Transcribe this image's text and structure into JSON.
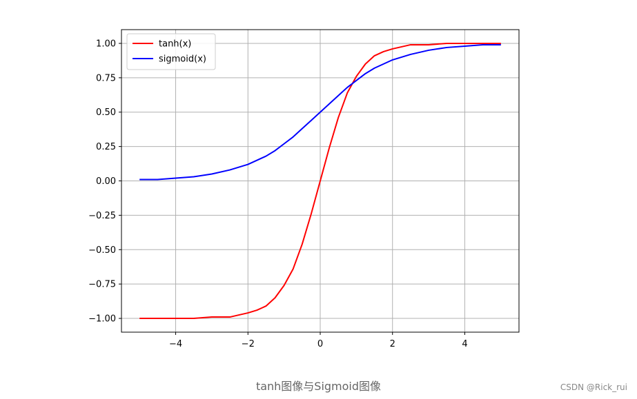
{
  "chart_data": {
    "type": "line",
    "title": "",
    "xlabel": "",
    "ylabel": "",
    "xlim": [
      -5.5,
      5.5
    ],
    "ylim": [
      -1.1,
      1.1
    ],
    "xticks": [
      -4,
      -2,
      0,
      2,
      4
    ],
    "xtick_labels": [
      "−4",
      "−2",
      "0",
      "2",
      "4"
    ],
    "yticks": [
      -1.0,
      -0.75,
      -0.5,
      -0.25,
      0.0,
      0.25,
      0.5,
      0.75,
      1.0
    ],
    "ytick_labels": [
      "−1.00",
      "−0.75",
      "−0.50",
      "−0.25",
      "0.00",
      "0.25",
      "0.50",
      "0.75",
      "1.00"
    ],
    "grid": true,
    "legend_position": "upper-left",
    "series": [
      {
        "name": "tanh(x)",
        "color": "#ff0000",
        "x": [
          -5,
          -4.5,
          -4,
          -3.5,
          -3,
          -2.5,
          -2,
          -1.75,
          -1.5,
          -1.25,
          -1,
          -0.75,
          -0.5,
          -0.25,
          0,
          0.25,
          0.5,
          0.75,
          1,
          1.25,
          1.5,
          1.75,
          2,
          2.5,
          3,
          3.5,
          4,
          4.5,
          5
        ],
        "y": [
          -1.0,
          -1.0,
          -1.0,
          -1.0,
          -0.99,
          -0.99,
          -0.96,
          -0.94,
          -0.91,
          -0.85,
          -0.76,
          -0.64,
          -0.46,
          -0.24,
          0.0,
          0.24,
          0.46,
          0.64,
          0.76,
          0.85,
          0.91,
          0.94,
          0.96,
          0.99,
          0.99,
          1.0,
          1.0,
          1.0,
          1.0
        ]
      },
      {
        "name": "sigmoid(x)",
        "color": "#0000ff",
        "x": [
          -5,
          -4.5,
          -4,
          -3.5,
          -3,
          -2.5,
          -2,
          -1.75,
          -1.5,
          -1.25,
          -1,
          -0.75,
          -0.5,
          -0.25,
          0,
          0.25,
          0.5,
          0.75,
          1,
          1.25,
          1.5,
          1.75,
          2,
          2.5,
          3,
          3.5,
          4,
          4.5,
          5
        ],
        "y": [
          0.01,
          0.01,
          0.02,
          0.03,
          0.05,
          0.08,
          0.12,
          0.15,
          0.18,
          0.22,
          0.27,
          0.32,
          0.38,
          0.44,
          0.5,
          0.56,
          0.62,
          0.68,
          0.73,
          0.78,
          0.82,
          0.85,
          0.88,
          0.92,
          0.95,
          0.97,
          0.98,
          0.99,
          0.99
        ]
      }
    ]
  },
  "caption": "tanh图像与Sigmoid图像",
  "watermark": "CSDN @Rick_rui"
}
